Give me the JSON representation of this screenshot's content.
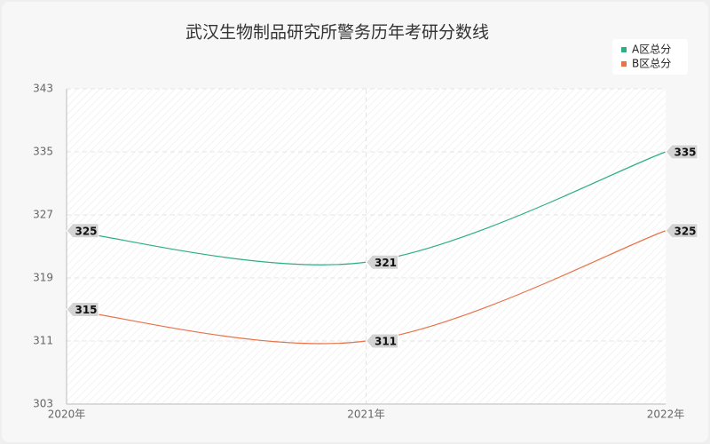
{
  "chart_data": {
    "type": "line",
    "title": "武汉生物制品研究所警务历年考研分数线",
    "categories": [
      "2020年",
      "2021年",
      "2022年"
    ],
    "series": [
      {
        "name": "A区总分",
        "color": "#2eae84",
        "values": [
          325,
          321,
          335
        ]
      },
      {
        "name": "B区总分",
        "color": "#e8734a",
        "values": [
          315,
          311,
          325
        ]
      }
    ],
    "ylim": [
      303,
      343
    ],
    "yticks": [
      303,
      311,
      319,
      327,
      335,
      343
    ],
    "grid": true,
    "smooth": true,
    "legend": "top-right"
  }
}
